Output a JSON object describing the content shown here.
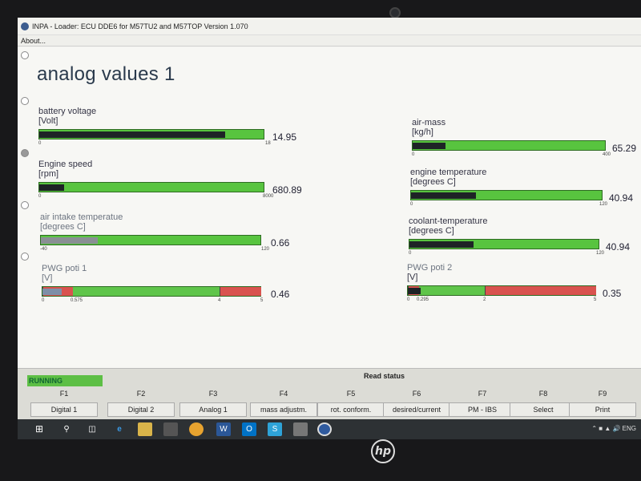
{
  "window": {
    "title": "INPA - Loader:  ECU DDE6 for M57TU2 and M57TOP Version 1.070",
    "menu_about": "About..."
  },
  "page": {
    "title": "analog values 1"
  },
  "gauges_left": [
    {
      "label": "battery voltage",
      "unit": "[Volt]",
      "value": "14.95",
      "min": "0",
      "max": "18",
      "fill": 0.83
    },
    {
      "label": "Engine speed",
      "unit": "[rpm]",
      "value": "680.89",
      "min": "0",
      "max": "8000",
      "fill": 0.11
    },
    {
      "label": "air intake temperatue",
      "unit": "[degrees C]",
      "value": "0.66",
      "min": "-40",
      "max": "120",
      "fill": 0.26
    },
    {
      "label": "PWG poti 1",
      "unit": "[V]",
      "value": "0.46",
      "min": "0",
      "mid": "0.575",
      "hi": "4",
      "max": "5",
      "fill": 0.09
    }
  ],
  "gauges_right": [
    {
      "label": "air-mass",
      "unit": "[kg/h]",
      "value": "65.29",
      "min": "0",
      "max": "400",
      "fill": 0.17
    },
    {
      "label": "engine temperature",
      "unit": "[degrees C]",
      "value": "40.94",
      "min": "0",
      "max": "120",
      "fill": 0.34
    },
    {
      "label": "coolant-temperature",
      "unit": "[degrees C]",
      "value": "40.94",
      "min": "0",
      "max": "120",
      "fill": 0.34
    },
    {
      "label": "PWG poti 2",
      "unit": "[V]",
      "value": "0.35",
      "min": "0",
      "mid": "0.295",
      "hi": "2",
      "max": "5",
      "fill": 0.07
    }
  ],
  "status": {
    "running": "RUNNING",
    "read_status": "Read status"
  },
  "fkeys": [
    {
      "num": "F1",
      "label": "Digital 1"
    },
    {
      "num": "F2",
      "label": "Digital 2"
    },
    {
      "num": "F3",
      "label": "Analog 1"
    },
    {
      "num": "F4",
      "label": "mass adjustm."
    },
    {
      "num": "F5",
      "label": "rot. conform."
    },
    {
      "num": "F6",
      "label": "desired/current"
    },
    {
      "num": "F7",
      "label": "PM - IBS"
    },
    {
      "num": "F8",
      "label": "Select"
    },
    {
      "num": "F9",
      "label": "Print"
    }
  ],
  "taskbar": {
    "lang": "ENG"
  },
  "colors": {
    "bar_green": "#58c43f",
    "bar_red": "#d9534f",
    "bar_fill": "#1e2326",
    "running": "#5dbf45"
  },
  "brand": {
    "logo": "hp"
  }
}
